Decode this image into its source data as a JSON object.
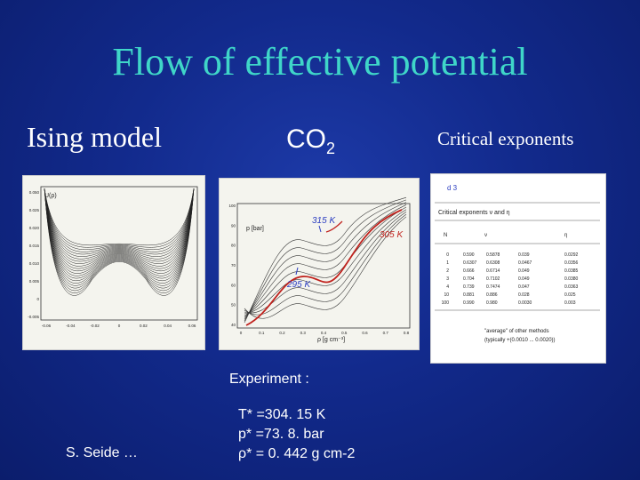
{
  "slide": {
    "title": "Flow of effective potential",
    "ising_label": "Ising  model",
    "co2_label": "CO",
    "co2_subscript": "2",
    "critical_label": "Critical exponents"
  },
  "ising_figure": {
    "y_axis_label": "U(ρ)",
    "y_ticks": [
      "0.050",
      "0.025",
      "0.020",
      "0.015",
      "0.010",
      "0.005",
      "0",
      "-0.005"
    ],
    "x_ticks": [
      "-0.06",
      "-0.04",
      "-0.02",
      "0",
      "0.02",
      "0.04",
      "0.06"
    ]
  },
  "co2_figure": {
    "y_axis_label": "p [bar]",
    "x_axis_label": "ρ [g cm⁻³]",
    "y_ticks": [
      "100",
      "90",
      "80",
      "70",
      "60",
      "50",
      "40"
    ],
    "x_ticks": [
      "0",
      "0.1",
      "0.2",
      "0.3",
      "0.4",
      "0.5",
      "0.6",
      "0.7",
      "0.8"
    ],
    "annotations": [
      "315 K",
      "305 K",
      "295 K"
    ]
  },
  "exponents_figure": {
    "header": "d    3",
    "title": "Critical exponents ν and η",
    "columns": [
      "N",
      "ν",
      "η"
    ],
    "rows": [
      [
        "0",
        "0.590",
        "0.5878",
        "0.039",
        "0.0292"
      ],
      [
        "1",
        "0.6307",
        "0.6308",
        "0.0467",
        "0.0356"
      ],
      [
        "2",
        "0.666",
        "0.6714",
        "0.049",
        "0.0385"
      ],
      [
        "3",
        "0.704",
        "0.7102",
        "0.049",
        "0.0380"
      ],
      [
        "4",
        "0.739",
        "0.7474",
        "0.047",
        "0.0363"
      ],
      [
        "10",
        "0.881",
        "0.886",
        "0.028",
        "0.025"
      ],
      [
        "100",
        "0.990",
        "0.980",
        "0.0030",
        "0.003"
      ]
    ],
    "footnote_1": "\"average\" of other methods",
    "footnote_2": "(typically +(0.0010 ... 0.0020))"
  },
  "experiment": {
    "heading": "Experiment :",
    "temperature": "T* =304. 15 K",
    "pressure": "p* =73. 8. bar",
    "density": "ρ*  = 0. 442 g cm-2"
  },
  "author": "S. Seide …"
}
